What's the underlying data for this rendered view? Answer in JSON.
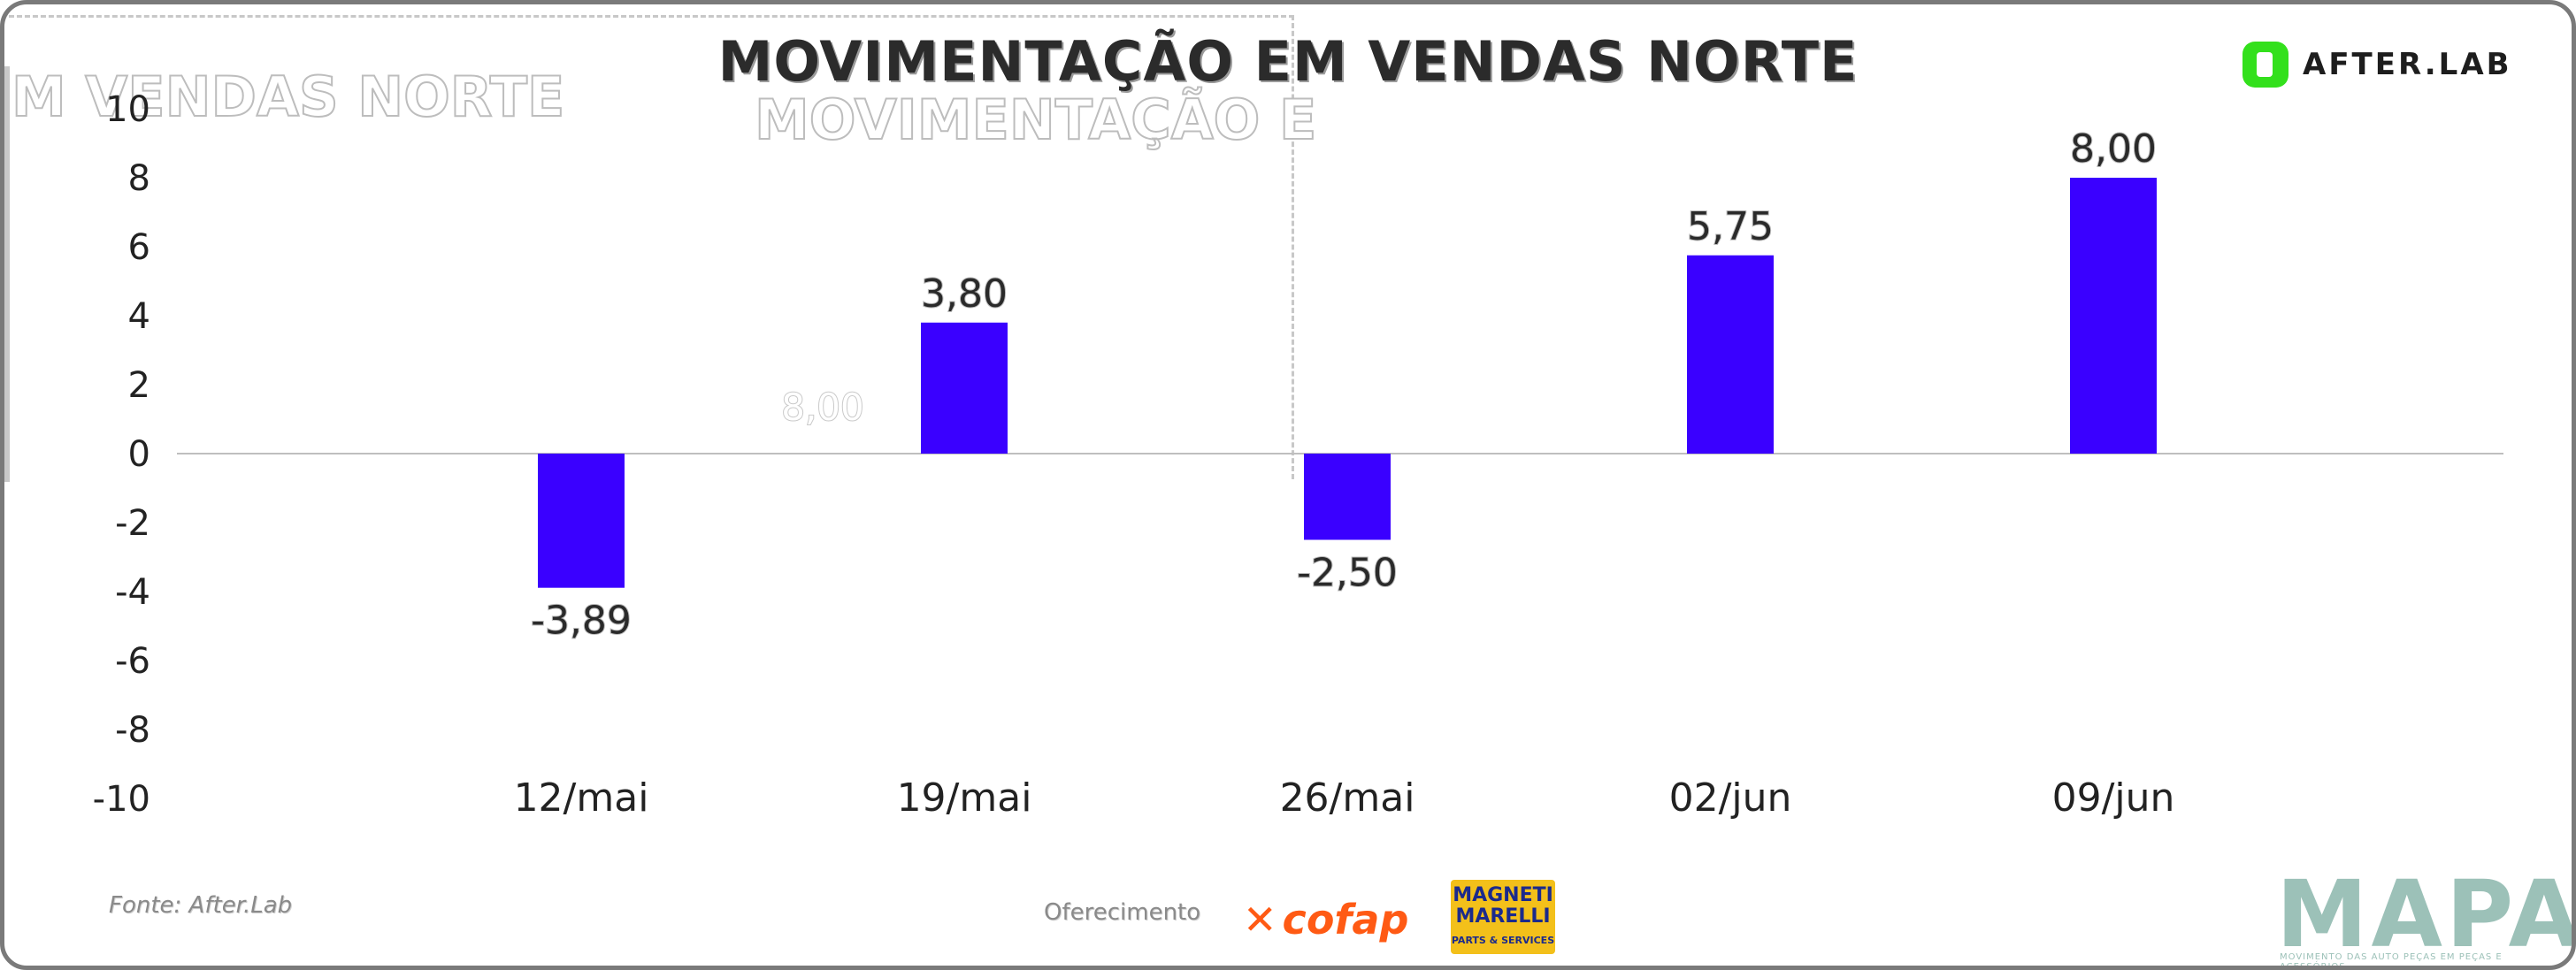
{
  "header": {
    "title": "MOVIMENTAÇÃO EM VENDAS NORTE",
    "ghost_left": "M VENDAS NORTE",
    "ghost_mid": "MOVIMENTAÇÃO E"
  },
  "logos": {
    "afterlab": "AFTER.LAB",
    "cofap": "cofap",
    "magneti_top": "MAGNETI MARELLI",
    "magneti_bottom": "PARTS & SERVICES",
    "mapa": "MAPA",
    "mapa_sub": "MOVIMENTO DAS AUTO PEÇAS EM PEÇAS E ACESSÓRIOS"
  },
  "footer": {
    "source": "Fonte: After.Lab",
    "sponsor_label": "Oferecimento"
  },
  "colors": {
    "bar": "#3a00ff",
    "axis": "#bfbfbf",
    "text": "#222222",
    "afterlab_green": "#33e01c",
    "cofap_orange": "#ff5a14"
  },
  "chart_data": {
    "type": "bar",
    "title": "MOVIMENTAÇÃO EM VENDAS NORTE",
    "categories": [
      "12/mai",
      "19/mai",
      "26/mai",
      "02/jun",
      "09/jun"
    ],
    "values": [
      -3.89,
      3.8,
      -2.5,
      5.75,
      8.0
    ],
    "value_labels": [
      "-3,89",
      "3,80",
      "-2,50",
      "5,75",
      "8,00"
    ],
    "ylim": [
      -10,
      10
    ],
    "yticks": [
      10,
      8,
      6,
      4,
      2,
      0,
      -2,
      -4,
      -6,
      -8,
      -10
    ],
    "grid": false,
    "legend": "none",
    "ghost_label": "8,00"
  }
}
